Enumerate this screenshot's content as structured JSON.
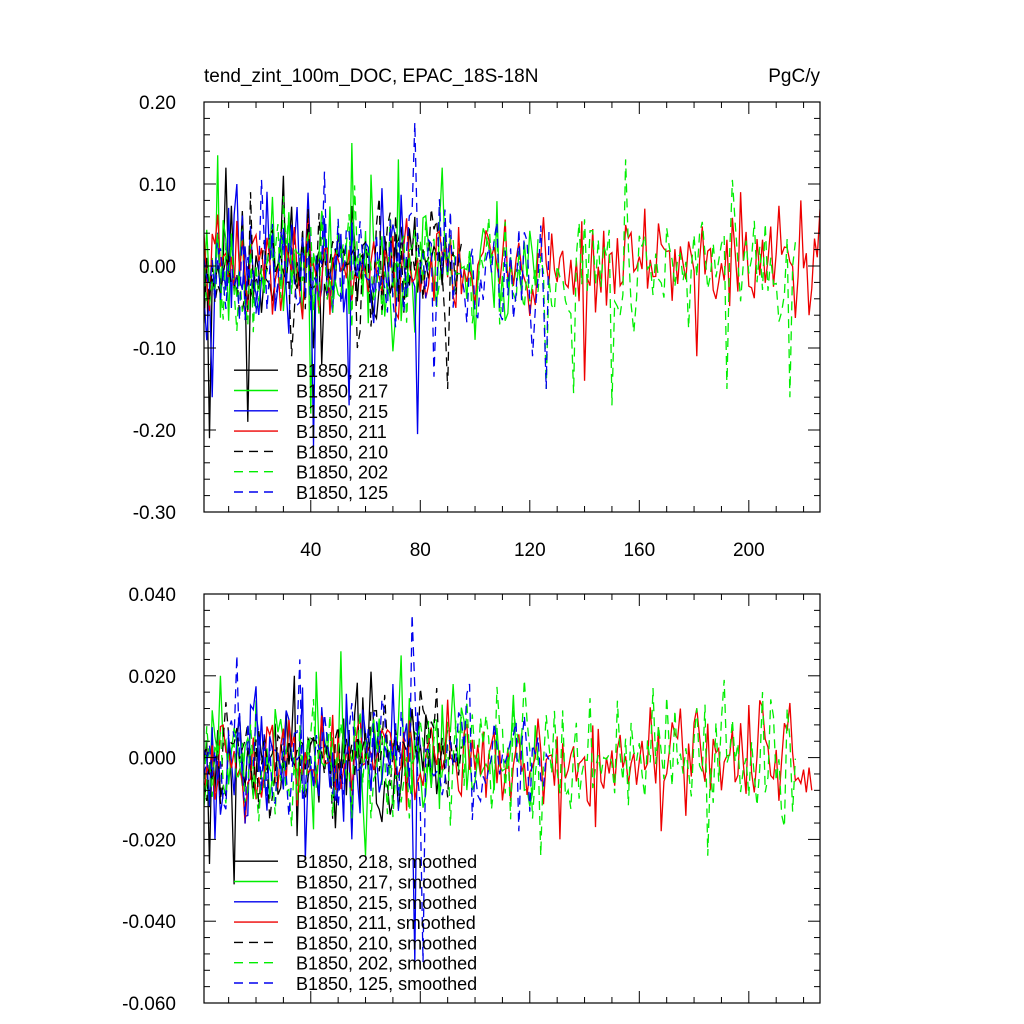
{
  "chart_data": [
    {
      "type": "line",
      "title": "tend_zint_100m_DOC, EPAC_18S-18N",
      "units": "PgC/y",
      "xlabel": "",
      "ylabel": "",
      "xlim": [
        1,
        226
      ],
      "ylim": [
        -0.3,
        0.2
      ],
      "xticks": [
        40,
        80,
        120,
        160,
        200
      ],
      "xtick_labels": [
        "40",
        "80",
        "120",
        "160",
        "200"
      ],
      "yticks": [
        -0.3,
        -0.2,
        -0.1,
        0.0,
        0.1,
        0.2
      ],
      "ytick_labels": [
        "-0.30",
        "-0.20",
        "-0.10",
        "0.00",
        "0.10",
        "0.20"
      ],
      "grid": false,
      "legend_position": "bottom-left",
      "series": [
        {
          "name": "B1850, 218",
          "color": "#000000",
          "dash": "solid",
          "length": 90,
          "amplitude": 0.055,
          "seed": 11,
          "mean": 0.0,
          "spikes": [
            [
              3,
              -0.21
            ],
            [
              9,
              0.12
            ],
            [
              17,
              -0.19
            ],
            [
              30,
              0.11
            ],
            [
              44,
              -0.12
            ]
          ]
        },
        {
          "name": "B1850, 217",
          "color": "#00ee00",
          "dash": "solid",
          "length": 123,
          "amplitude": 0.06,
          "seed": 23,
          "mean": 0.0,
          "spikes": [
            [
              6,
              0.135
            ],
            [
              40,
              -0.18
            ],
            [
              55,
              0.15
            ],
            [
              72,
              0.13
            ],
            [
              88,
              0.12
            ],
            [
              100,
              -0.09
            ]
          ]
        },
        {
          "name": "B1850, 215",
          "color": "#0000ee",
          "dash": "solid",
          "length": 80,
          "amplitude": 0.06,
          "seed": 37,
          "mean": 0.0,
          "spikes": [
            [
              4,
              -0.16
            ],
            [
              13,
              0.1
            ],
            [
              41,
              -0.22
            ],
            [
              54,
              -0.17
            ],
            [
              66,
              0.095
            ],
            [
              79,
              -0.205
            ]
          ]
        },
        {
          "name": "B1850, 211",
          "color": "#ee0000",
          "dash": "solid",
          "length": 226,
          "amplitude": 0.045,
          "seed": 41,
          "mean": 0.0,
          "spikes": [
            [
              140,
              -0.14
            ],
            [
              162,
              0.07
            ],
            [
              181,
              -0.11
            ],
            [
              197,
              0.09
            ],
            [
              219,
              0.08
            ],
            [
              222,
              -0.06
            ]
          ]
        },
        {
          "name": "B1850, 210",
          "color": "#000000",
          "dash": "dashed",
          "length": 95,
          "amplitude": 0.05,
          "seed": 53,
          "mean": 0.0,
          "spikes": [
            [
              18,
              0.09
            ],
            [
              33,
              -0.11
            ],
            [
              57,
              -0.1
            ],
            [
              84,
              0.07
            ],
            [
              90,
              -0.15
            ]
          ]
        },
        {
          "name": "B1850, 202",
          "color": "#00ee00",
          "dash": "dashed",
          "length": 217,
          "amplitude": 0.055,
          "seed": 67,
          "mean": 0.0,
          "spikes": [
            [
              126,
              -0.15
            ],
            [
              136,
              -0.155
            ],
            [
              150,
              -0.17
            ],
            [
              155,
              0.13
            ],
            [
              192,
              -0.15
            ],
            [
              194,
              0.105
            ],
            [
              215,
              -0.16
            ]
          ]
        },
        {
          "name": "B1850, 125",
          "color": "#0000ee",
          "dash": "dashed",
          "length": 127,
          "amplitude": 0.055,
          "seed": 79,
          "mean": 0.0,
          "spikes": [
            [
              22,
              0.105
            ],
            [
              45,
              0.115
            ],
            [
              78,
              0.175
            ],
            [
              85,
              -0.135
            ],
            [
              121,
              -0.11
            ],
            [
              126,
              -0.15
            ]
          ]
        }
      ]
    },
    {
      "type": "line",
      "title": "",
      "xlabel": "",
      "ylabel": "",
      "xlim": [
        1,
        226
      ],
      "ylim": [
        -0.06,
        0.04
      ],
      "xticks": [
        40,
        80,
        120,
        160,
        200
      ],
      "xtick_labels": [],
      "yticks": [
        -0.06,
        -0.04,
        -0.02,
        0.0,
        0.02,
        0.04
      ],
      "ytick_labels": [
        "-0.060",
        "-0.040",
        "-0.020",
        "0.000",
        "0.020",
        "0.040"
      ],
      "grid": false,
      "legend_position": "bottom-left",
      "series": [
        {
          "name": "B1850, 218, smoothed",
          "color": "#000000",
          "dash": "solid",
          "length": 90,
          "amplitude": 0.011,
          "seed": 111,
          "mean": 0.0,
          "spikes": [
            [
              3,
              -0.026
            ],
            [
              12,
              -0.031
            ],
            [
              34,
              0.02
            ],
            [
              55,
              -0.018
            ],
            [
              62,
              0.021
            ]
          ]
        },
        {
          "name": "B1850, 217, smoothed",
          "color": "#00ee00",
          "dash": "solid",
          "length": 123,
          "amplitude": 0.012,
          "seed": 123,
          "mean": 0.0,
          "spikes": [
            [
              7,
              0.02
            ],
            [
              42,
              0.021
            ],
            [
              51,
              0.026
            ],
            [
              60,
              -0.024
            ],
            [
              73,
              0.025
            ],
            [
              92,
              0.018
            ]
          ]
        },
        {
          "name": "B1850, 215, smoothed",
          "color": "#0000ee",
          "dash": "solid",
          "length": 80,
          "amplitude": 0.012,
          "seed": 137,
          "mean": 0.0,
          "spikes": [
            [
              5,
              -0.02
            ],
            [
              38,
              -0.025
            ],
            [
              55,
              -0.02
            ],
            [
              70,
              0.018
            ],
            [
              78,
              -0.05
            ]
          ]
        },
        {
          "name": "B1850, 211, smoothed",
          "color": "#ee0000",
          "dash": "solid",
          "length": 223,
          "amplitude": 0.009,
          "seed": 141,
          "mean": 0.0,
          "spikes": [
            [
              131,
              -0.02
            ],
            [
              144,
              -0.017
            ],
            [
              168,
              -0.018
            ],
            [
              175,
              0.012
            ],
            [
              204,
              0.014
            ],
            [
              223,
              -0.008
            ]
          ]
        },
        {
          "name": "B1850, 210, smoothed",
          "color": "#000000",
          "dash": "dashed",
          "length": 95,
          "amplitude": 0.01,
          "seed": 153,
          "mean": 0.0,
          "spikes": [
            [
              80,
              0.017
            ],
            [
              86,
              0.017
            ],
            [
              48,
              -0.015
            ]
          ]
        },
        {
          "name": "B1850, 202, smoothed",
          "color": "#00ee00",
          "dash": "dashed",
          "length": 217,
          "amplitude": 0.011,
          "seed": 167,
          "mean": 0.0,
          "spikes": [
            [
              118,
              0.019
            ],
            [
              124,
              -0.024
            ],
            [
              165,
              0.017
            ],
            [
              185,
              -0.024
            ],
            [
              191,
              0.019
            ],
            [
              212,
              -0.014
            ],
            [
              214,
              0.012
            ]
          ]
        },
        {
          "name": "B1850, 125, smoothed",
          "color": "#0000ee",
          "dash": "dashed",
          "length": 127,
          "amplitude": 0.011,
          "seed": 179,
          "mean": 0.0,
          "spikes": [
            [
              13,
              0.025
            ],
            [
              36,
              0.024
            ],
            [
              77,
              0.035
            ],
            [
              81,
              -0.05
            ],
            [
              98,
              0.018
            ],
            [
              116,
              -0.018
            ]
          ]
        }
      ]
    }
  ]
}
